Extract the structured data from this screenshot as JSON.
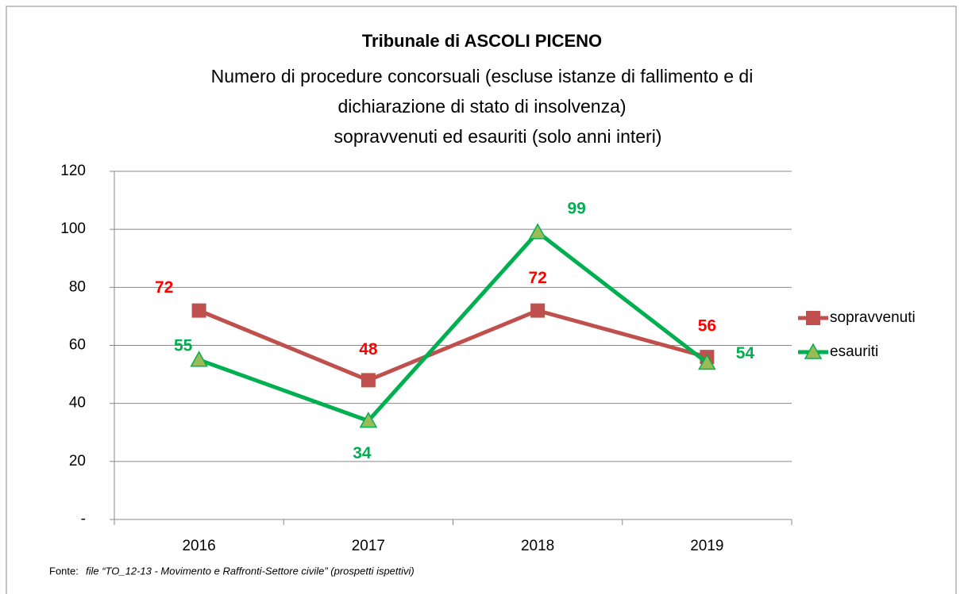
{
  "chart_data": {
    "type": "line",
    "title": "Tribunale di ASCOLI PICENO",
    "subtitle": [
      "Numero di procedure concorsuali (escluse istanze di fallimento e di",
      "dichiarazione di stato di insolvenza)",
      "sopravvenuti ed esauriti (solo anni interi)"
    ],
    "categories": [
      "2016",
      "2017",
      "2018",
      "2019"
    ],
    "series": [
      {
        "name": "sopravvenuti",
        "color": "#c0504d",
        "label_color": "#ff0000",
        "marker": "square",
        "values": [
          72,
          48,
          72,
          56
        ]
      },
      {
        "name": "esauriti",
        "color": "#00b050",
        "label_color": "#00b050",
        "marker": "triangle",
        "values": [
          55,
          34,
          99,
          54
        ]
      }
    ],
    "ylim": [
      0,
      120
    ],
    "yticks": [
      {
        "value": 0,
        "label": "-"
      },
      20,
      40,
      60,
      80,
      100,
      120
    ],
    "grid": true,
    "legend": "right",
    "source_label": "Fonte:",
    "source_text": "file “TO_12-13 - Movimento e Raffronti-Settore civile” (prospetti ispettivi)"
  }
}
